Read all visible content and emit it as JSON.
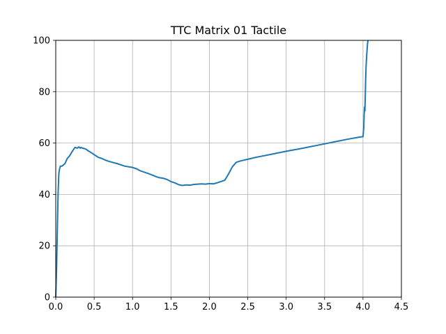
{
  "chart_data": {
    "type": "line",
    "title": "TTC Matrix 01 Tactile",
    "xlabel": "",
    "ylabel": "",
    "xlim": [
      0,
      4.5
    ],
    "ylim": [
      0,
      100
    ],
    "xticks": [
      0.0,
      0.5,
      1.0,
      1.5,
      2.0,
      2.5,
      3.0,
      3.5,
      4.0,
      4.5
    ],
    "xtick_labels": [
      "0.0",
      "0.5",
      "1.0",
      "1.5",
      "2.0",
      "2.5",
      "3.0",
      "3.5",
      "4.0",
      "4.5"
    ],
    "yticks": [
      0,
      20,
      40,
      60,
      80,
      100
    ],
    "ytick_labels": [
      "0",
      "20",
      "40",
      "60",
      "80",
      "100"
    ],
    "grid": true,
    "series": [
      {
        "color": "#1f77b4",
        "x": [
          0.0,
          0.01,
          0.02,
          0.03,
          0.04,
          0.05,
          0.06,
          0.08,
          0.1,
          0.12,
          0.15,
          0.18,
          0.2,
          0.22,
          0.25,
          0.28,
          0.3,
          0.32,
          0.33,
          0.35,
          0.38,
          0.4,
          0.42,
          0.45,
          0.5,
          0.55,
          0.6,
          0.65,
          0.7,
          0.8,
          0.9,
          1.0,
          1.05,
          1.1,
          1.15,
          1.2,
          1.25,
          1.3,
          1.35,
          1.4,
          1.45,
          1.5,
          1.55,
          1.6,
          1.65,
          1.7,
          1.75,
          1.8,
          1.85,
          1.9,
          1.95,
          2.0,
          2.05,
          2.1,
          2.15,
          2.2,
          2.25,
          2.3,
          2.35,
          2.4,
          2.5,
          2.6,
          2.7,
          2.8,
          2.9,
          3.0,
          3.2,
          3.4,
          3.6,
          3.8,
          3.95,
          4.0,
          4.01,
          4.015,
          4.02,
          4.025,
          4.03,
          4.035,
          4.04,
          4.05,
          4.06,
          4.065
        ],
        "y": [
          0,
          10,
          25,
          40,
          48,
          50,
          51,
          51,
          51.5,
          52,
          54,
          55,
          56,
          57,
          58.3,
          58,
          58.5,
          58,
          58.3,
          58,
          57.8,
          57.5,
          57,
          56.5,
          55.5,
          54.5,
          54,
          53.3,
          52.8,
          52,
          51,
          50.5,
          50,
          49.2,
          48.7,
          48.2,
          47.6,
          47,
          46.5,
          46.3,
          45.8,
          45,
          44.5,
          43.8,
          43.5,
          43.7,
          43.6,
          43.9,
          44,
          44.1,
          44,
          44.2,
          44.1,
          44.5,
          45,
          45.5,
          48,
          50.8,
          52.5,
          53,
          53.7,
          54.4,
          55,
          55.6,
          56.2,
          56.8,
          57.9,
          59.1,
          60.3,
          61.5,
          62.3,
          62.5,
          66,
          71,
          74,
          72.5,
          79,
          85,
          90,
          95,
          99,
          100
        ]
      }
    ]
  }
}
